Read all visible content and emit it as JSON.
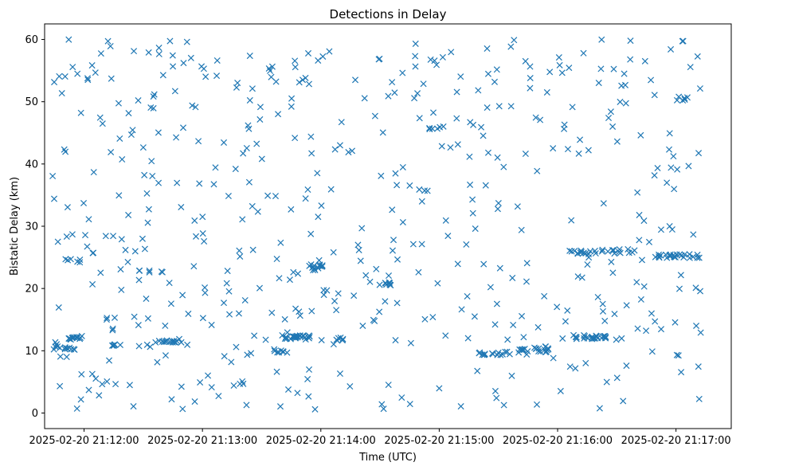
{
  "chart_data": {
    "type": "scatter",
    "title": "Detections in Delay",
    "xlabel": "Time (UTC)",
    "ylabel": "Bistatic Delay (km)",
    "marker": "x",
    "color": "#1f77b4",
    "x_unit": "seconds after 2025-02-20 21:12:00 UTC",
    "xlim": [
      -20,
      328
    ],
    "ylim": [
      -2.5,
      62.5
    ],
    "x_ticks": [
      0,
      60,
      120,
      180,
      240,
      300
    ],
    "x_tick_labels": [
      "2025-02-20 21:12:00",
      "2025-02-20 21:13:00",
      "2025-02-20 21:14:00",
      "2025-02-20 21:15:00",
      "2025-02-20 21:16:00",
      "2025-02-20 21:17:00"
    ],
    "y_ticks": [
      0,
      10,
      20,
      30,
      40,
      50,
      60
    ],
    "y_tick_labels": [
      "0",
      "10",
      "20",
      "30",
      "40",
      "50",
      "60"
    ],
    "seed": 20250220,
    "scattered_count": 520,
    "x_range": [
      -16,
      314
    ],
    "y_range": [
      0.5,
      60
    ],
    "clusters": [
      {
        "x": [
          -16,
          -4
        ],
        "y": 10.4,
        "n": 12
      },
      {
        "x": [
          -8,
          0
        ],
        "y": 12.1,
        "n": 12
      },
      {
        "x": [
          -10,
          -2
        ],
        "y": 24.5,
        "n": 6
      },
      {
        "x": [
          14,
          22
        ],
        "y": 11,
        "n": 5
      },
      {
        "x": [
          35,
          50
        ],
        "y": 11.6,
        "n": 16
      },
      {
        "x": [
          26,
          40
        ],
        "y": 22.8,
        "n": 6
      },
      {
        "x": [
          100,
          112
        ],
        "y": 12.2,
        "n": 12
      },
      {
        "x": [
          104,
          118
        ],
        "y": 12.1,
        "n": 12
      },
      {
        "x": [
          96,
          104
        ],
        "y": 10,
        "n": 8
      },
      {
        "x": [
          114,
          126
        ],
        "y": 23.6,
        "n": 10
      },
      {
        "x": [
          116,
          122
        ],
        "y": 23.2,
        "n": 5
      },
      {
        "x": [
          120,
          132
        ],
        "y": 11.8,
        "n": 8
      },
      {
        "x": [
          152,
          156
        ],
        "y": 20.8,
        "n": 7
      },
      {
        "x": [
          175,
          183
        ],
        "y": 45.8,
        "n": 6
      },
      {
        "x": [
          200,
          215
        ],
        "y": 9.6,
        "n": 14
      },
      {
        "x": [
          220,
          238
        ],
        "y": 10,
        "n": 14
      },
      {
        "x": [
          228,
          236
        ],
        "y": 10.4,
        "n": 8
      },
      {
        "x": [
          248,
          266
        ],
        "y": 12.2,
        "n": 24
      },
      {
        "x": [
          244,
          262
        ],
        "y": 25.8,
        "n": 14
      },
      {
        "x": [
          262,
          282
        ],
        "y": 26,
        "n": 12
      },
      {
        "x": [
          286,
          312
        ],
        "y": 25.2,
        "n": 26
      },
      {
        "x": [
          300,
          306
        ],
        "y": 50.5,
        "n": 6
      }
    ]
  }
}
